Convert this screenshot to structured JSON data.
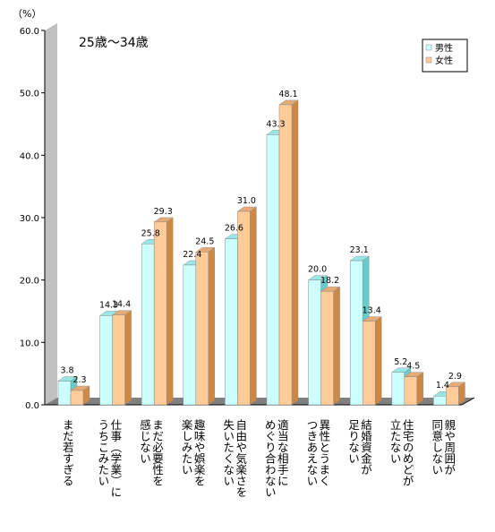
{
  "chart_data": {
    "type": "bar",
    "subtitle": "25歳～34歳",
    "ylabel": "（%）",
    "ylim": [
      0,
      60
    ],
    "yticks": [
      "0.0",
      "10.0",
      "20.0",
      "30.0",
      "40.0",
      "50.0",
      "60.0"
    ],
    "categories": [
      "まだ若すぎる",
      "仕事（学業）に打ち込みたい",
      "まだ必要性を感じない",
      "趣味や娯楽を楽しみたい",
      "自由や気楽さを失いたくない",
      "適当な相手にめぐり合わない",
      "異性とうまくつきあえない",
      "結婚資金が足りない",
      "住宅のめどが立たない",
      "親や周囲が同意しない"
    ],
    "category_lines": [
      [
        "まだ若すぎる"
      ],
      [
        "仕事（学業）に",
        "うちこみたい"
      ],
      [
        "まだ必要性を",
        "感じない"
      ],
      [
        "趣味や娯楽を",
        "楽しみたい"
      ],
      [
        "自由や気楽さを",
        "失いたくない"
      ],
      [
        "適当な相手に",
        "めぐり合わない"
      ],
      [
        "異性とうまく",
        "つきあえない"
      ],
      [
        "結婚資金が",
        "足りない"
      ],
      [
        "住宅のめどが",
        "立たない"
      ],
      [
        "親や周囲が",
        "同意しない"
      ]
    ],
    "series": [
      {
        "name": "男性",
        "color": "#ccffff",
        "values": [
          3.8,
          14.3,
          25.8,
          22.4,
          26.6,
          43.3,
          20.0,
          23.1,
          5.2,
          1.4
        ],
        "labels": [
          "3.8",
          "14.3",
          "25.8",
          "22.4",
          "26.6",
          "43.3",
          "20.0",
          "23.1",
          "5.2",
          "1.4"
        ]
      },
      {
        "name": "女性",
        "color": "#ffcc99",
        "values": [
          2.3,
          14.4,
          29.3,
          24.5,
          31.0,
          48.1,
          18.2,
          13.4,
          4.5,
          2.9
        ],
        "labels": [
          "2.3",
          "14.4",
          "29.3",
          "24.5",
          "31.0",
          "48.1",
          "18.2",
          "13.4",
          "4.5",
          "2.9"
        ]
      }
    ],
    "grid": false,
    "legend_position": "top-right",
    "colors": {
      "wall": "#c0c0c0",
      "floor": "#808080",
      "bar_outline": "#808080"
    }
  }
}
